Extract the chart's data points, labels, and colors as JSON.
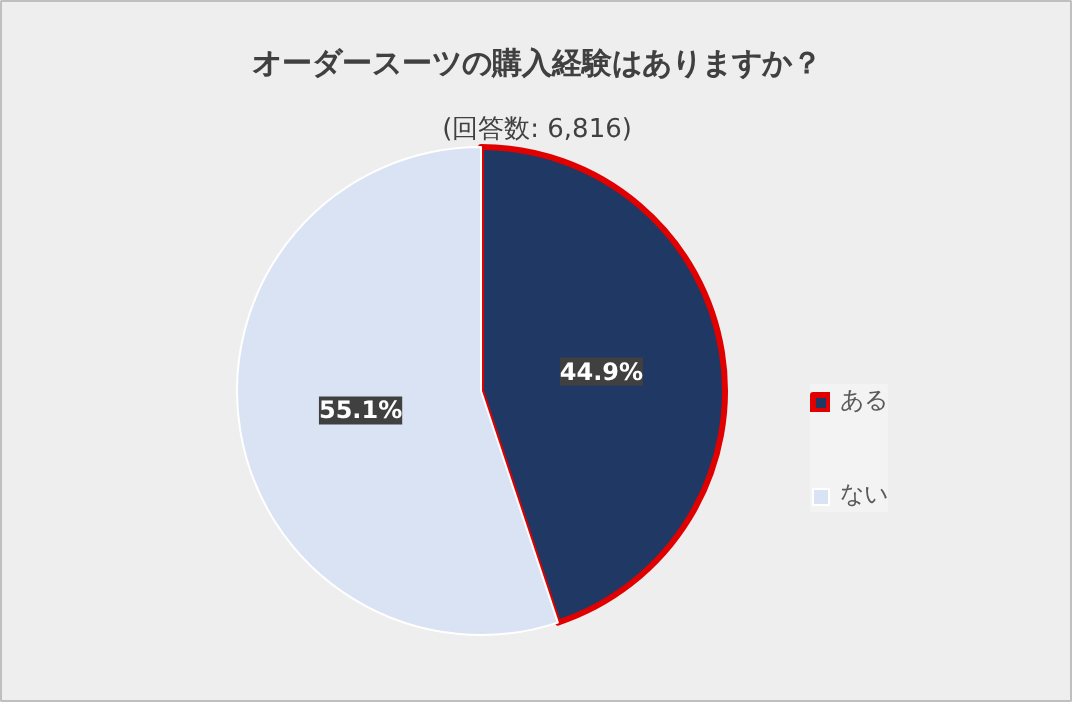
{
  "chart_data": {
    "type": "pie",
    "title": "オーダースーツの購入経験はありますか？",
    "subtitle": "(回答数: 6,816)",
    "categories": [
      "ある",
      "ない"
    ],
    "values": [
      44.9,
      55.1
    ],
    "colors": [
      "#1f3864",
      "#dae3f3"
    ],
    "value_labels": [
      "44.9%",
      "55.1%"
    ],
    "legend": "right"
  }
}
